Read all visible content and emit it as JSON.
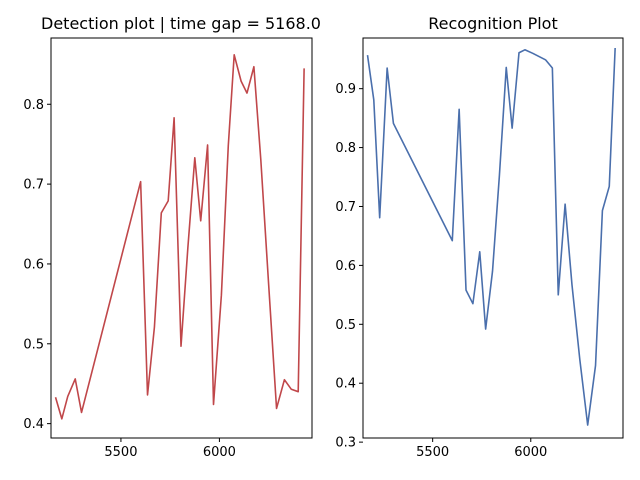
{
  "chart_data": [
    {
      "type": "line",
      "title": "Detection plot | time gap = 5168.0",
      "xlim": [
        5145,
        6470
      ],
      "ylim": [
        0.382,
        0.883
      ],
      "xticks": [
        5500,
        6000
      ],
      "xtick_labels": [
        "5500",
        "6000"
      ],
      "yticks": [
        0.4,
        0.5,
        0.6,
        0.7,
        0.8
      ],
      "ytick_labels": [
        "0.4",
        "0.5",
        "0.6",
        "0.7",
        "0.8"
      ],
      "grid": false,
      "color": "#c0474a",
      "series": [
        {
          "x": [
            5168,
            5200,
            5230,
            5268,
            5300,
            5600,
            5635,
            5670,
            5705,
            5740,
            5770,
            5805,
            5840,
            5875,
            5905,
            5940,
            5970,
            6010,
            6045,
            6075,
            6110,
            6140,
            6175,
            6210,
            6250,
            6290,
            6330,
            6365,
            6400,
            6430
          ],
          "y": [
            0.433,
            0.406,
            0.434,
            0.456,
            0.414,
            0.703,
            0.436,
            0.521,
            0.664,
            0.679,
            0.783,
            0.497,
            0.621,
            0.733,
            0.654,
            0.749,
            0.424,
            0.561,
            0.748,
            0.862,
            0.829,
            0.814,
            0.847,
            0.731,
            0.574,
            0.419,
            0.455,
            0.443,
            0.44,
            0.845
          ]
        }
      ]
    },
    {
      "type": "line",
      "title": "Recognition Plot",
      "xlim": [
        5145,
        6470
      ],
      "ylim": [
        0.307,
        0.986
      ],
      "xticks": [
        5500,
        6000
      ],
      "xtick_labels": [
        "5500",
        "6000"
      ],
      "yticks": [
        0.3,
        0.4,
        0.5,
        0.6,
        0.7,
        0.8,
        0.9
      ],
      "ytick_labels": [
        "0.3",
        "0.4",
        "0.5",
        "0.6",
        "0.7",
        "0.8",
        "0.9"
      ],
      "grid": false,
      "color": "#4a6fac",
      "series": [
        {
          "x": [
            5168,
            5200,
            5230,
            5268,
            5300,
            5600,
            5635,
            5670,
            5705,
            5740,
            5770,
            5805,
            5840,
            5875,
            5905,
            5940,
            5970,
            6010,
            6045,
            6075,
            6110,
            6140,
            6175,
            6210,
            6250,
            6290,
            6330,
            6365,
            6400,
            6430
          ],
          "y": [
            0.957,
            0.881,
            0.681,
            0.935,
            0.841,
            0.642,
            0.865,
            0.558,
            0.535,
            0.623,
            0.492,
            0.59,
            0.752,
            0.936,
            0.833,
            0.961,
            0.966,
            0.96,
            0.954,
            0.949,
            0.935,
            0.55,
            0.704,
            0.567,
            0.44,
            0.329,
            0.43,
            0.693,
            0.734,
            0.969
          ]
        }
      ]
    }
  ]
}
